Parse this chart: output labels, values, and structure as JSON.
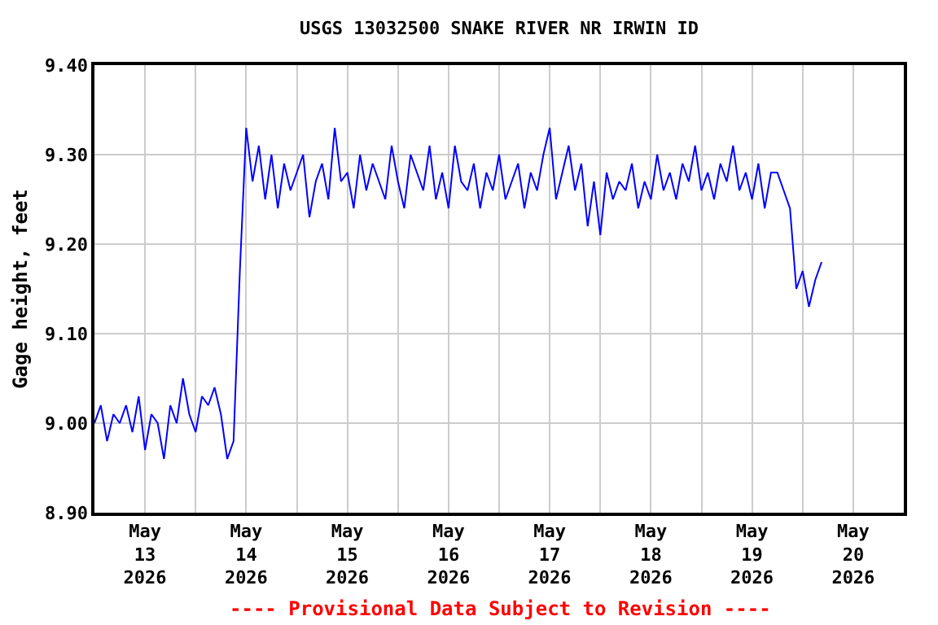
{
  "chart_data": {
    "type": "line",
    "title": "USGS 13032500 SNAKE RIVER NR IRWIN ID",
    "ylabel": "Gage height, feet",
    "annotations": [
      "---- Provisional Data Subject to Revision ----"
    ],
    "x": [
      "2026-05-13T00:00",
      "2026-05-13T01:30",
      "2026-05-13T03:00",
      "2026-05-13T04:30",
      "2026-05-13T06:00",
      "2026-05-13T07:30",
      "2026-05-13T09:00",
      "2026-05-13T10:30",
      "2026-05-13T12:00",
      "2026-05-13T13:30",
      "2026-05-13T15:00",
      "2026-05-13T16:30",
      "2026-05-13T18:00",
      "2026-05-13T19:30",
      "2026-05-13T21:00",
      "2026-05-13T22:30",
      "2026-05-14T00:00",
      "2026-05-14T01:30",
      "2026-05-14T03:00",
      "2026-05-14T04:30",
      "2026-05-14T06:00",
      "2026-05-14T07:30",
      "2026-05-14T09:00",
      "2026-05-14T10:30",
      "2026-05-14T12:00",
      "2026-05-14T13:30",
      "2026-05-14T15:00",
      "2026-05-14T16:30",
      "2026-05-14T18:00",
      "2026-05-14T19:30",
      "2026-05-14T21:00",
      "2026-05-14T22:30",
      "2026-05-15T00:00",
      "2026-05-15T01:30",
      "2026-05-15T03:00",
      "2026-05-15T04:30",
      "2026-05-15T06:00",
      "2026-05-15T07:30",
      "2026-05-15T09:00",
      "2026-05-15T10:30",
      "2026-05-15T12:00",
      "2026-05-15T13:30",
      "2026-05-15T15:00",
      "2026-05-15T16:30",
      "2026-05-15T18:00",
      "2026-05-15T19:30",
      "2026-05-15T21:00",
      "2026-05-15T22:30",
      "2026-05-16T00:00",
      "2026-05-16T01:30",
      "2026-05-16T03:00",
      "2026-05-16T04:30",
      "2026-05-16T06:00",
      "2026-05-16T07:30",
      "2026-05-16T09:00",
      "2026-05-16T10:30",
      "2026-05-16T12:00",
      "2026-05-16T13:30",
      "2026-05-16T15:00",
      "2026-05-16T16:30",
      "2026-05-16T18:00",
      "2026-05-16T19:30",
      "2026-05-16T21:00",
      "2026-05-16T22:30",
      "2026-05-17T00:00",
      "2026-05-17T01:30",
      "2026-05-17T03:00",
      "2026-05-17T04:30",
      "2026-05-17T06:00",
      "2026-05-17T07:30",
      "2026-05-17T09:00",
      "2026-05-17T10:30",
      "2026-05-17T12:00",
      "2026-05-17T13:30",
      "2026-05-17T15:00",
      "2026-05-17T16:30",
      "2026-05-17T18:00",
      "2026-05-17T19:30",
      "2026-05-17T21:00",
      "2026-05-17T22:30",
      "2026-05-18T00:00",
      "2026-05-18T01:30",
      "2026-05-18T03:00",
      "2026-05-18T04:30",
      "2026-05-18T06:00",
      "2026-05-18T07:30",
      "2026-05-18T09:00",
      "2026-05-18T10:30",
      "2026-05-18T12:00",
      "2026-05-18T13:30",
      "2026-05-18T15:00",
      "2026-05-18T16:30",
      "2026-05-18T18:00",
      "2026-05-18T19:30",
      "2026-05-18T21:00",
      "2026-05-18T22:30",
      "2026-05-19T00:00",
      "2026-05-19T01:30",
      "2026-05-19T03:00",
      "2026-05-19T04:30",
      "2026-05-19T06:00",
      "2026-05-19T07:30",
      "2026-05-19T09:00",
      "2026-05-19T10:30",
      "2026-05-19T12:00",
      "2026-05-19T13:30",
      "2026-05-19T15:00",
      "2026-05-19T16:30",
      "2026-05-19T18:00",
      "2026-05-19T19:30",
      "2026-05-19T21:00",
      "2026-05-19T22:30",
      "2026-05-20T00:00",
      "2026-05-20T01:30",
      "2026-05-20T03:00",
      "2026-05-20T04:30"
    ],
    "series": [
      {
        "color": "#0000ff",
        "values": [
          9.0,
          9.02,
          8.98,
          9.01,
          9.0,
          9.02,
          8.99,
          9.03,
          8.97,
          9.01,
          9.0,
          8.96,
          9.02,
          9.0,
          9.05,
          9.01,
          8.99,
          9.03,
          9.02,
          9.04,
          9.01,
          8.96,
          8.98,
          9.17,
          9.33,
          9.27,
          9.31,
          9.25,
          9.3,
          9.24,
          9.29,
          9.26,
          9.28,
          9.3,
          9.23,
          9.27,
          9.29,
          9.25,
          9.33,
          9.27,
          9.28,
          9.24,
          9.3,
          9.26,
          9.29,
          9.27,
          9.25,
          9.31,
          9.27,
          9.24,
          9.3,
          9.28,
          9.26,
          9.31,
          9.25,
          9.28,
          9.24,
          9.31,
          9.27,
          9.26,
          9.29,
          9.24,
          9.28,
          9.26,
          9.3,
          9.25,
          9.27,
          9.29,
          9.24,
          9.28,
          9.26,
          9.3,
          9.33,
          9.25,
          9.28,
          9.31,
          9.26,
          9.29,
          9.22,
          9.27,
          9.21,
          9.28,
          9.25,
          9.27,
          9.26,
          9.29,
          9.24,
          9.27,
          9.25,
          9.3,
          9.26,
          9.28,
          9.25,
          9.29,
          9.27,
          9.31,
          9.26,
          9.28,
          9.25,
          9.29,
          9.27,
          9.31,
          9.26,
          9.28,
          9.25,
          9.29,
          9.24,
          9.28,
          9.28,
          9.26,
          9.24,
          9.15,
          9.17,
          9.13,
          9.16,
          9.18
        ]
      }
    ],
    "xlim": [
      "2026-05-13T00:00",
      "2026-05-21T00:00"
    ],
    "xticks": [
      {
        "value": "2026-05-13T00:00",
        "label": null
      },
      {
        "value": "2026-05-13T12:00",
        "label": "May\n13\n2026"
      },
      {
        "value": "2026-05-14T00:00",
        "label": null
      },
      {
        "value": "2026-05-14T12:00",
        "label": "May\n14\n2026"
      },
      {
        "value": "2026-05-15T00:00",
        "label": null
      },
      {
        "value": "2026-05-15T12:00",
        "label": "May\n15\n2026"
      },
      {
        "value": "2026-05-16T00:00",
        "label": null
      },
      {
        "value": "2026-05-16T12:00",
        "label": "May\n16\n2026"
      },
      {
        "value": "2026-05-17T00:00",
        "label": null
      },
      {
        "value": "2026-05-17T12:00",
        "label": "May\n17\n2026"
      },
      {
        "value": "2026-05-18T00:00",
        "label": null
      },
      {
        "value": "2026-05-18T12:00",
        "label": "May\n18\n2026"
      },
      {
        "value": "2026-05-19T00:00",
        "label": null
      },
      {
        "value": "2026-05-19T12:00",
        "label": "May\n19\n2026"
      },
      {
        "value": "2026-05-20T00:00",
        "label": null
      },
      {
        "value": "2026-05-20T12:00",
        "label": "May\n20\n2026"
      },
      {
        "value": "2026-05-21T00:00",
        "label": null
      }
    ],
    "ylim": [
      8.9,
      9.4
    ],
    "yticks": [
      {
        "value": 8.9,
        "label": "8.90"
      },
      {
        "value": 9.0,
        "label": "9.00"
      },
      {
        "value": 9.1,
        "label": "9.10"
      },
      {
        "value": 9.2,
        "label": "9.20"
      },
      {
        "value": 9.3,
        "label": "9.30"
      },
      {
        "value": 9.4,
        "label": "9.40"
      }
    ],
    "grid": true
  }
}
